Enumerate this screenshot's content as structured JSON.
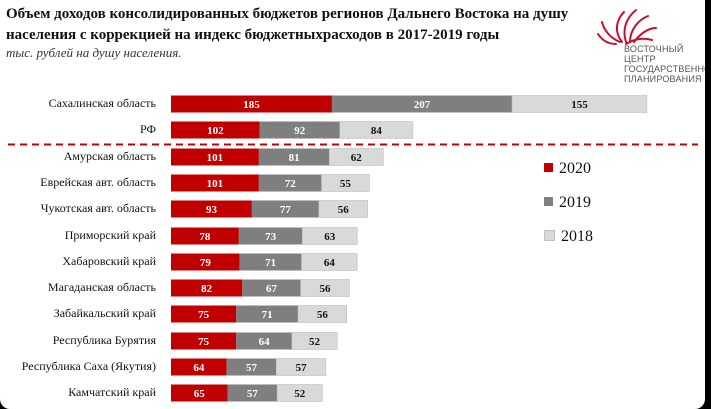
{
  "title": "Объем доходов консолидированных бюджетов регионов Дальнего Востока на душу населения с коррекцией на индекс бюджетныхрасходов в 2017-2019 годы",
  "subtitle": "тыс. рублей на душу населения.",
  "logo": {
    "lines": [
      "ВОСТОЧНЫЙ ЦЕНТР",
      "ГОСУДАРСТВЕННОГО",
      "ПЛАНИРОВАНИЯ"
    ],
    "color": "#c8102e"
  },
  "chart_data": {
    "type": "bar",
    "orientation": "horizontal",
    "stacked": true,
    "categories": [
      "Сахалинская область",
      "РФ",
      "Амурская область",
      "Еврейская авт. область",
      "Чукотская авт. область",
      "Приморский край",
      "Хабаровский край",
      "Магаданская область",
      "Забайкальский край",
      "Республика Бурятия",
      "Республика Саха (Якутия)",
      "Камчатский край"
    ],
    "series": [
      {
        "name": "2020",
        "color": "#c00000",
        "values": [
          185,
          102,
          101,
          101,
          93,
          78,
          79,
          82,
          75,
          75,
          64,
          65
        ]
      },
      {
        "name": "2019",
        "color": "#7f7f7f",
        "values": [
          207,
          92,
          81,
          72,
          77,
          73,
          71,
          67,
          71,
          64,
          57,
          57
        ]
      },
      {
        "name": "2018",
        "color": "#d9d9d9",
        "values": [
          155,
          84,
          62,
          55,
          56,
          63,
          64,
          56,
          56,
          52,
          57,
          52
        ]
      }
    ],
    "legend_position": "right",
    "separator_after": "РФ",
    "grid": false
  }
}
